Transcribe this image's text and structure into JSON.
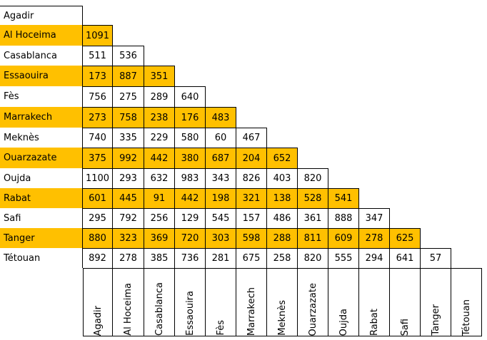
{
  "highlight_color": "#ffc000",
  "cities": [
    "Agadir",
    "Al Hoceima",
    "Casablanca",
    "Essaouira",
    "Fès",
    "Marrakech",
    "Meknès",
    "Ouarzazate",
    "Oujda",
    "Rabat",
    "Safi",
    "Tanger",
    "Tétouan"
  ],
  "highlighted_rows": [
    1,
    3,
    5,
    7,
    9,
    11
  ],
  "distances": [
    [],
    [
      1091
    ],
    [
      511,
      536
    ],
    [
      173,
      887,
      351
    ],
    [
      756,
      275,
      289,
      640
    ],
    [
      273,
      758,
      238,
      176,
      483
    ],
    [
      740,
      335,
      229,
      580,
      60,
      467
    ],
    [
      375,
      992,
      442,
      380,
      687,
      204,
      652
    ],
    [
      1100,
      293,
      632,
      983,
      343,
      826,
      403,
      820
    ],
    [
      601,
      445,
      91,
      442,
      198,
      321,
      138,
      528,
      541
    ],
    [
      295,
      792,
      256,
      129,
      545,
      157,
      486,
      361,
      888,
      347
    ],
    [
      880,
      323,
      369,
      720,
      303,
      598,
      288,
      811,
      609,
      278,
      625
    ],
    [
      892,
      278,
      385,
      736,
      281,
      675,
      258,
      820,
      555,
      294,
      641,
      57
    ]
  ]
}
